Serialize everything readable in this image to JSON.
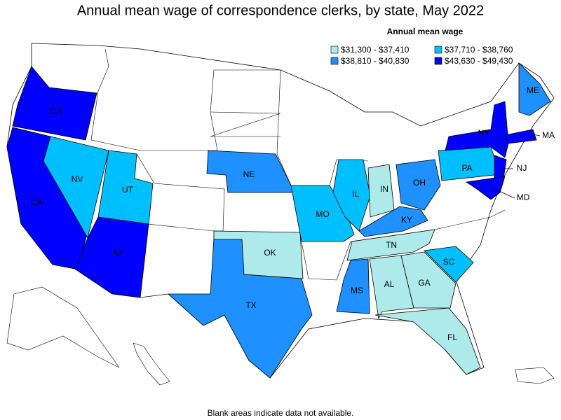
{
  "title": "Annual mean wage of correspondence clerks, by state, May 2022",
  "legend": {
    "title": "Annual mean wage",
    "items": [
      {
        "label": "$31,300 - $37,410",
        "color": "#aeeaea"
      },
      {
        "label": "$37,710 - $38,760",
        "color": "#00bfff"
      },
      {
        "label": "$38,810 - $40,830",
        "color": "#1e90ff"
      },
      {
        "label": "$43,630 - $49,430",
        "color": "#0000ff"
      }
    ]
  },
  "states": [
    {
      "label": "OR",
      "color": "#0000ff"
    },
    {
      "label": "CA",
      "color": "#0000ff"
    },
    {
      "label": "NV",
      "color": "#00bfff"
    },
    {
      "label": "UT",
      "color": "#00bfff"
    },
    {
      "label": "AZ",
      "color": "#0000ff"
    },
    {
      "label": "NE",
      "color": "#1e90ff"
    },
    {
      "label": "TX",
      "color": "#1e90ff"
    },
    {
      "label": "OK",
      "color": "#aeeaea"
    },
    {
      "label": "MO",
      "color": "#00bfff"
    },
    {
      "label": "IL",
      "color": "#00bfff"
    },
    {
      "label": "IN",
      "color": "#aeeaea"
    },
    {
      "label": "OH",
      "color": "#1e90ff"
    },
    {
      "label": "KY",
      "color": "#1e90ff"
    },
    {
      "label": "TN",
      "color": "#aeeaea"
    },
    {
      "label": "MS",
      "color": "#1e90ff"
    },
    {
      "label": "AL",
      "color": "#aeeaea"
    },
    {
      "label": "GA",
      "color": "#aeeaea"
    },
    {
      "label": "FL",
      "color": "#aeeaea"
    },
    {
      "label": "SC",
      "color": "#00bfff"
    },
    {
      "label": "PA",
      "color": "#00bfff"
    },
    {
      "label": "NY",
      "color": "#0000ff"
    },
    {
      "label": "NJ",
      "color": "#0000ff"
    },
    {
      "label": "MD",
      "color": "#0000ff"
    },
    {
      "label": "MA",
      "color": "#0000ff"
    },
    {
      "label": "ME",
      "color": "#1e90ff"
    }
  ],
  "footnote": "Blank areas indicate data not available."
}
